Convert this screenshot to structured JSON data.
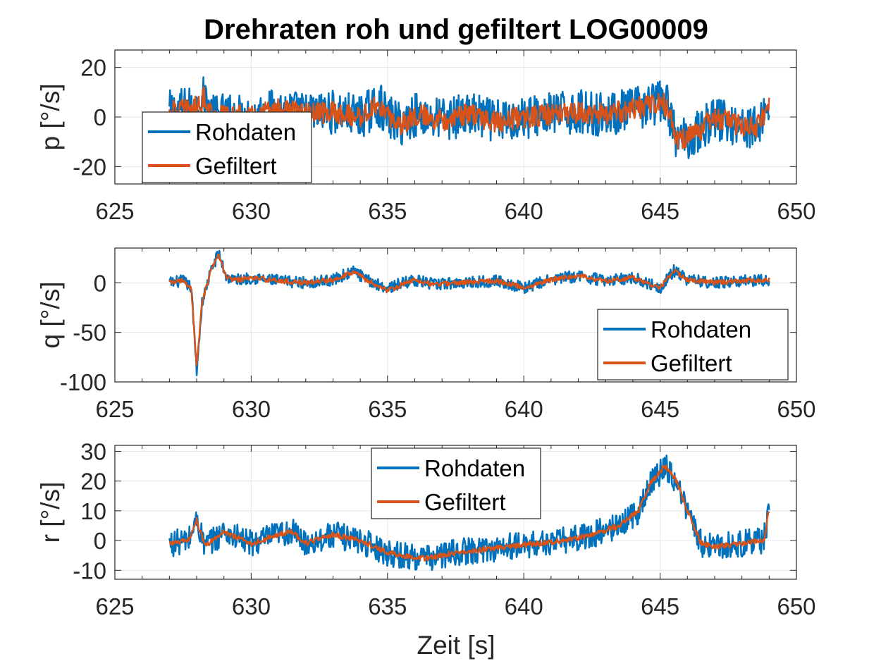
{
  "figure": {
    "title": "Drehraten roh und gefiltert LOG00009",
    "xlabel": "Zeit [s]"
  },
  "colors": {
    "raw": "#0072BD",
    "filtered": "#D95319",
    "grid": "#e6e6e6",
    "axis": "#262626"
  },
  "chart_data": [
    {
      "type": "line",
      "id": "p",
      "ylabel": "p [°/s]",
      "xlim": [
        625,
        650
      ],
      "ylim": [
        -27,
        27
      ],
      "xticks": [
        625,
        630,
        635,
        640,
        645,
        650
      ],
      "yticks": [
        -20,
        0,
        20
      ],
      "grid": true,
      "legend": {
        "position": "left",
        "entries": [
          "Rohdaten",
          "Gefiltert"
        ]
      },
      "x_start": 627.0,
      "x_end": 649.0,
      "series": [
        {
          "name": "Rohdaten",
          "noise": 9.0,
          "values": [
            [
              627.0,
              2
            ],
            [
              627.5,
              3
            ],
            [
              628.0,
              4
            ],
            [
              628.3,
              8
            ],
            [
              628.6,
              0
            ],
            [
              629.0,
              1
            ],
            [
              630.0,
              0
            ],
            [
              631.0,
              3
            ],
            [
              632.0,
              1
            ],
            [
              633.0,
              2
            ],
            [
              634.0,
              0
            ],
            [
              634.7,
              5
            ],
            [
              635.0,
              0
            ],
            [
              635.5,
              -3
            ],
            [
              636.0,
              1
            ],
            [
              637.0,
              -1
            ],
            [
              638.0,
              1
            ],
            [
              639.0,
              -2
            ],
            [
              640.0,
              0
            ],
            [
              641.0,
              1
            ],
            [
              642.0,
              2
            ],
            [
              643.0,
              1
            ],
            [
              644.0,
              3
            ],
            [
              645.0,
              6
            ],
            [
              645.3,
              4
            ],
            [
              645.6,
              -10
            ],
            [
              646.0,
              -8
            ],
            [
              646.5,
              -5
            ],
            [
              647.0,
              0
            ],
            [
              647.5,
              -2
            ],
            [
              648.0,
              -3
            ],
            [
              648.5,
              -5
            ],
            [
              649.0,
              5
            ]
          ]
        },
        {
          "name": "Gefiltert",
          "noise": 4.5,
          "values": [
            [
              627.0,
              2
            ],
            [
              627.5,
              3
            ],
            [
              628.0,
              4
            ],
            [
              628.3,
              8
            ],
            [
              628.6,
              0
            ],
            [
              629.0,
              1
            ],
            [
              630.0,
              0
            ],
            [
              631.0,
              3
            ],
            [
              632.0,
              1
            ],
            [
              633.0,
              2
            ],
            [
              634.0,
              0
            ],
            [
              634.7,
              5
            ],
            [
              635.0,
              0
            ],
            [
              635.5,
              -3
            ],
            [
              636.0,
              1
            ],
            [
              637.0,
              -1
            ],
            [
              638.0,
              1
            ],
            [
              639.0,
              -2
            ],
            [
              640.0,
              0
            ],
            [
              641.0,
              1
            ],
            [
              642.0,
              2
            ],
            [
              643.0,
              1
            ],
            [
              644.0,
              3
            ],
            [
              645.0,
              6
            ],
            [
              645.3,
              4
            ],
            [
              645.6,
              -10
            ],
            [
              646.0,
              -8
            ],
            [
              646.5,
              -5
            ],
            [
              647.0,
              0
            ],
            [
              647.5,
              -2
            ],
            [
              648.0,
              -3
            ],
            [
              648.5,
              -5
            ],
            [
              649.0,
              5
            ]
          ]
        }
      ]
    },
    {
      "type": "line",
      "id": "q",
      "ylabel": "q [°/s]",
      "xlim": [
        625,
        650
      ],
      "ylim": [
        -100,
        35
      ],
      "xticks": [
        625,
        630,
        635,
        640,
        645,
        650
      ],
      "yticks": [
        -100,
        -50,
        0
      ],
      "grid": true,
      "legend": {
        "position": "bottom-right",
        "entries": [
          "Rohdaten",
          "Gefiltert"
        ]
      },
      "x_start": 627.0,
      "x_end": 649.0,
      "series": [
        {
          "name": "Rohdaten",
          "noise": 6.0,
          "values": [
            [
              627.0,
              0
            ],
            [
              627.5,
              2
            ],
            [
              627.8,
              -5
            ],
            [
              628.0,
              -88
            ],
            [
              628.2,
              -20
            ],
            [
              628.5,
              10
            ],
            [
              628.8,
              30
            ],
            [
              629.1,
              5
            ],
            [
              629.5,
              3
            ],
            [
              630.0,
              5
            ],
            [
              631.0,
              2
            ],
            [
              632.0,
              0
            ],
            [
              633.0,
              3
            ],
            [
              633.8,
              12
            ],
            [
              634.2,
              3
            ],
            [
              635.0,
              -5
            ],
            [
              636.0,
              3
            ],
            [
              636.7,
              -2
            ],
            [
              637.5,
              0
            ],
            [
              639.0,
              2
            ],
            [
              640.0,
              -5
            ],
            [
              641.0,
              3
            ],
            [
              642.0,
              7
            ],
            [
              643.0,
              2
            ],
            [
              644.0,
              5
            ],
            [
              645.0,
              -5
            ],
            [
              645.5,
              12
            ],
            [
              646.0,
              3
            ],
            [
              647.0,
              0
            ],
            [
              648.0,
              2
            ],
            [
              649.0,
              3
            ]
          ]
        },
        {
          "name": "Gefiltert",
          "noise": 2.5,
          "values": [
            [
              627.0,
              0
            ],
            [
              627.5,
              2
            ],
            [
              627.8,
              -5
            ],
            [
              628.0,
              -84
            ],
            [
              628.2,
              -20
            ],
            [
              628.5,
              10
            ],
            [
              628.8,
              28
            ],
            [
              629.1,
              5
            ],
            [
              629.5,
              3
            ],
            [
              630.0,
              5
            ],
            [
              631.0,
              2
            ],
            [
              632.0,
              0
            ],
            [
              633.0,
              3
            ],
            [
              633.8,
              12
            ],
            [
              634.2,
              3
            ],
            [
              635.0,
              -8
            ],
            [
              636.0,
              3
            ],
            [
              636.7,
              -2
            ],
            [
              637.5,
              0
            ],
            [
              639.0,
              2
            ],
            [
              640.0,
              -5
            ],
            [
              641.0,
              3
            ],
            [
              642.0,
              7
            ],
            [
              643.0,
              2
            ],
            [
              644.0,
              5
            ],
            [
              645.0,
              -5
            ],
            [
              645.5,
              12
            ],
            [
              646.0,
              3
            ],
            [
              647.0,
              0
            ],
            [
              648.0,
              2
            ],
            [
              649.0,
              3
            ]
          ]
        }
      ]
    },
    {
      "type": "line",
      "id": "r",
      "ylabel": "r [°/s]",
      "xlim": [
        625,
        650
      ],
      "ylim": [
        -13,
        32
      ],
      "xticks": [
        625,
        630,
        635,
        640,
        645,
        650
      ],
      "yticks": [
        -10,
        0,
        10,
        20,
        30
      ],
      "grid": true,
      "legend": {
        "position": "top",
        "entries": [
          "Rohdaten",
          "Gefiltert"
        ]
      },
      "x_start": 627.0,
      "x_end": 649.0,
      "series": [
        {
          "name": "Rohdaten",
          "noise": 4.5,
          "values": [
            [
              627.0,
              -1
            ],
            [
              627.7,
              0
            ],
            [
              628.0,
              7
            ],
            [
              628.3,
              -2
            ],
            [
              629.0,
              3
            ],
            [
              630.0,
              -1
            ],
            [
              631.0,
              2
            ],
            [
              631.5,
              3
            ],
            [
              632.0,
              -1
            ],
            [
              633.0,
              2
            ],
            [
              634.0,
              0
            ],
            [
              635.0,
              -4
            ],
            [
              635.5,
              -5
            ],
            [
              636.5,
              -6
            ],
            [
              637.5,
              -4
            ],
            [
              638.5,
              -3
            ],
            [
              639.5,
              -2
            ],
            [
              640.5,
              -1
            ],
            [
              641.5,
              0
            ],
            [
              642.5,
              2
            ],
            [
              643.5,
              5
            ],
            [
              644.2,
              10
            ],
            [
              644.7,
              20
            ],
            [
              645.2,
              25
            ],
            [
              645.6,
              20
            ],
            [
              646.0,
              10
            ],
            [
              646.5,
              -1
            ],
            [
              647.0,
              -2
            ],
            [
              648.0,
              -1
            ],
            [
              648.8,
              0
            ],
            [
              649.0,
              10
            ]
          ]
        },
        {
          "name": "Gefiltert",
          "noise": 0.9,
          "values": [
            [
              627.0,
              -1
            ],
            [
              627.7,
              0
            ],
            [
              628.0,
              7
            ],
            [
              628.3,
              -2
            ],
            [
              629.0,
              3
            ],
            [
              630.0,
              -1
            ],
            [
              631.0,
              2
            ],
            [
              631.5,
              3
            ],
            [
              632.0,
              -1
            ],
            [
              633.0,
              2
            ],
            [
              634.0,
              0
            ],
            [
              635.0,
              -4
            ],
            [
              635.5,
              -5
            ],
            [
              636.5,
              -6
            ],
            [
              637.5,
              -4
            ],
            [
              638.5,
              -3
            ],
            [
              639.5,
              -2
            ],
            [
              640.5,
              -1
            ],
            [
              641.5,
              0
            ],
            [
              642.5,
              2
            ],
            [
              643.5,
              5
            ],
            [
              644.2,
              10
            ],
            [
              644.7,
              20
            ],
            [
              645.2,
              25
            ],
            [
              645.6,
              20
            ],
            [
              646.0,
              10
            ],
            [
              646.5,
              -1
            ],
            [
              647.0,
              -2
            ],
            [
              648.0,
              -1
            ],
            [
              648.8,
              0
            ],
            [
              649.0,
              10
            ]
          ]
        }
      ]
    }
  ]
}
